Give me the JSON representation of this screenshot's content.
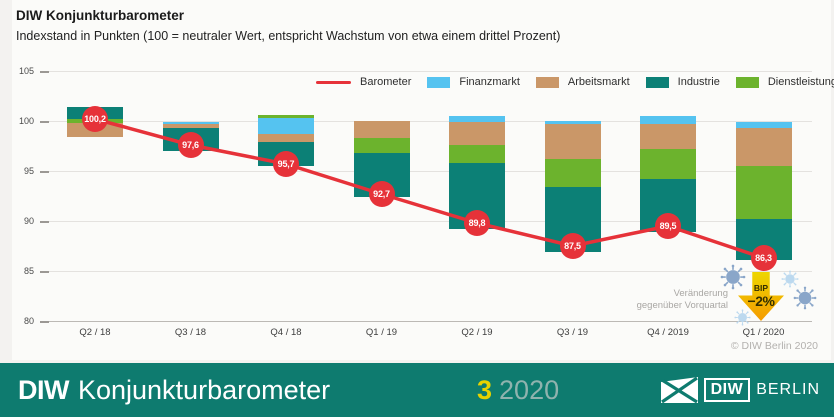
{
  "header": {
    "title": "DIW Konjunkturbarometer",
    "subtitle": "Indexstand in Punkten (100 = neutraler Wert, entspricht Wachstum von etwa einem drittel Prozent)"
  },
  "legend": [
    {
      "label": "Barometer",
      "swatch": "line",
      "color": "#e63239"
    },
    {
      "label": "Finanzmarkt",
      "swatch": "box",
      "color": "#55c3f0"
    },
    {
      "label": "Arbeitsmarkt",
      "swatch": "box",
      "color": "#ca9768"
    },
    {
      "label": "Industrie",
      "swatch": "box",
      "color": "#0c8076"
    },
    {
      "label": "Dienstleistungen",
      "swatch": "box",
      "color": "#6cb32d"
    }
  ],
  "chart_data": {
    "type": "bar",
    "subtype": "stacked-range-bars-with-line",
    "title": "DIW Konjunkturbarometer",
    "ylabel": "Indexstand in Punkten",
    "ylim": [
      80,
      105
    ],
    "yticks": [
      105,
      100,
      95,
      90,
      85,
      80
    ],
    "grid": true,
    "legend_position": "top",
    "categories": [
      "Q2 / 18",
      "Q3 / 18",
      "Q4 / 18",
      "Q1 / 19",
      "Q2 / 19",
      "Q3 / 19",
      "Q4 / 2019",
      "Q1 / 2020"
    ],
    "colors": {
      "Barometer": "#e63239",
      "Finanzmarkt": "#55c3f0",
      "Arbeitsmarkt": "#ca9768",
      "Industrie": "#0c8076",
      "Dienstleistungen": "#6cb32d"
    },
    "series": [
      {
        "name": "Barometer",
        "type": "line",
        "values": [
          100.2,
          97.6,
          95.7,
          92.7,
          89.8,
          87.5,
          89.5,
          86.3
        ],
        "labels": [
          "100,2",
          "97,6",
          "95,7",
          "92,7",
          "89,8",
          "87,5",
          "89,5",
          "86,3"
        ]
      }
    ],
    "bar_segments": [
      [
        {
          "component": "Industrie",
          "from": 101.4,
          "to": 100.25
        },
        {
          "component": "Dienstleistungen",
          "from": 100.25,
          "to": 99.85
        },
        {
          "component": "Arbeitsmarkt",
          "from": 99.85,
          "to": 98.4
        }
      ],
      [
        {
          "component": "Finanzmarkt",
          "from": 99.95,
          "to": 99.7
        },
        {
          "component": "Arbeitsmarkt",
          "from": 99.7,
          "to": 99.3
        },
        {
          "component": "Industrie",
          "from": 99.3,
          "to": 97.0
        }
      ],
      [
        {
          "component": "Dienstleistungen",
          "from": 100.6,
          "to": 100.35
        },
        {
          "component": "Finanzmarkt",
          "from": 100.35,
          "to": 98.7
        },
        {
          "component": "Arbeitsmarkt",
          "from": 98.7,
          "to": 97.9
        },
        {
          "component": "Industrie",
          "from": 97.9,
          "to": 95.5
        }
      ],
      [
        {
          "component": "Arbeitsmarkt",
          "from": 100.0,
          "to": 98.3
        },
        {
          "component": "Dienstleistungen",
          "from": 98.3,
          "to": 96.8
        },
        {
          "component": "Industrie",
          "from": 96.8,
          "to": 92.4
        }
      ],
      [
        {
          "component": "Finanzmarkt",
          "from": 100.5,
          "to": 99.9
        },
        {
          "component": "Arbeitsmarkt",
          "from": 99.9,
          "to": 97.6
        },
        {
          "component": "Dienstleistungen",
          "from": 97.6,
          "to": 95.8
        },
        {
          "component": "Industrie",
          "from": 95.8,
          "to": 89.2
        }
      ],
      [
        {
          "component": "Finanzmarkt",
          "from": 100.0,
          "to": 99.7
        },
        {
          "component": "Arbeitsmarkt",
          "from": 99.7,
          "to": 96.2
        },
        {
          "component": "Dienstleistungen",
          "from": 96.2,
          "to": 93.4
        },
        {
          "component": "Industrie",
          "from": 93.4,
          "to": 86.9
        }
      ],
      [
        {
          "component": "Finanzmarkt",
          "from": 100.5,
          "to": 99.7
        },
        {
          "component": "Arbeitsmarkt",
          "from": 99.7,
          "to": 97.2
        },
        {
          "component": "Dienstleistungen",
          "from": 97.2,
          "to": 94.2
        },
        {
          "component": "Industrie",
          "from": 94.2,
          "to": 88.9
        }
      ],
      [
        {
          "component": "Finanzmarkt",
          "from": 99.9,
          "to": 99.3
        },
        {
          "component": "Arbeitsmarkt",
          "from": 99.3,
          "to": 95.5
        },
        {
          "component": "Dienstleistungen",
          "from": 95.5,
          "to": 90.2
        },
        {
          "component": "Industrie",
          "from": 90.2,
          "to": 86.1
        }
      ]
    ],
    "annotations": [
      {
        "text": "Veränderung gegenüber Vorquartal",
        "target": "Q1 / 2020"
      },
      {
        "text": "BIP −2%",
        "target": "Q1 / 2020"
      }
    ]
  },
  "annotation": {
    "note_line1": "Veränderung",
    "note_line2": "gegenüber Vorquartal",
    "arrow_label_top": "BIP",
    "arrow_label_value": "−2%"
  },
  "copyright": "© DIW Berlin 2020",
  "footer": {
    "brand_bold": "DIW",
    "brand_rest": "Konjunkturbarometer",
    "issue_number": "3",
    "issue_year": "2020",
    "logo_diw": "DIW",
    "logo_berlin": "BERLIN"
  },
  "icons": {
    "virus_icons": [
      "virus-icon",
      "virus-icon",
      "virus-icon",
      "virus-icon"
    ],
    "arrow_icon": "down-arrow-icon",
    "logo_emblem": "diw-berlin-emblem-icon"
  },
  "ui_colors": {
    "banner_background": "#0e7b6f",
    "issue_number_color": "#e6d200",
    "arrow_gradient_top": "#edd600",
    "arrow_gradient_bottom": "#f59b00",
    "virus_dark": "#8aa6c9",
    "virus_light": "#bcd9ef"
  }
}
